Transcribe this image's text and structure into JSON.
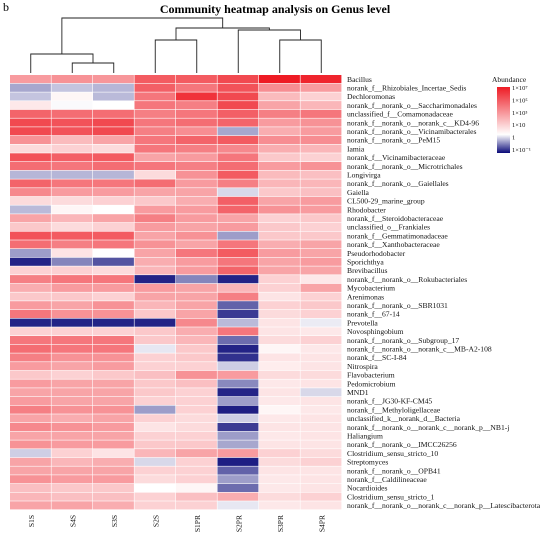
{
  "panel_letter": "b",
  "chart_data": {
    "type": "heatmap",
    "title": "Community heatmap analysis on Genus level",
    "columns": [
      "S1S",
      "S4S",
      "S3S",
      "S2S",
      "S1PR",
      "S2PR",
      "S3PR",
      "S4PR"
    ],
    "rows": [
      "Bacillus",
      "norank_f__Rhizobiales_Incertae_Sedis",
      "Dechloromonas",
      "norank_f__norank_o__Saccharimonadales",
      "unclassified_f__Comamonadaceae",
      "norank_f__norank_o__norank_c__KD4-96",
      "norank_f__norank_o__Vicinamibacterales",
      "norank_f__norank_o__PeM15",
      "Iamia",
      "norank_f__Vicinamibacteraceae",
      "norank_f__norank_o__Microtrichales",
      "Longivirga",
      "norank_f__norank_o__Gaiellales",
      "Gaiella",
      "CL500-29_marine_group",
      "Rhodobacter",
      "norank_f__Steroidobacteraceae",
      "unclassified_o__Frankiales",
      "norank_f__Gemmatimonadaceae",
      "norank_f__Xanthobacteraceae",
      "Pseudorhodobacter",
      "Sporichthya",
      "Brevibacillus",
      "norank_f__norank_o__Rokubacteriales",
      "Mycobacterium",
      "Arenimonas",
      "norank_f__norank_o__SBR1031",
      "norank_f__67-14",
      "Prevotella",
      "Novosphingobium",
      "norank_f__norank_o__Subgroup_17",
      "norank_f__norank_o__norank_c__MB-A2-108",
      "norank_f__SC-I-84",
      "Nitrospira",
      "Flavobacterium",
      "Pedomicrobium",
      "MND1",
      "norank_f__JG30-KF-CM45",
      "norank_f__Methyloligellaceae",
      "unclassified_k__norank_d__Bacteria",
      "norank_f__norank_o__norank_c__norank_p__NB1-j",
      "Haliangium",
      "norank_f__norank_o__IMCC26256",
      "Clostridium_sensu_stricto_10",
      "Streptomyces",
      "norank_f__norank_o__OPB41",
      "norank_f__Caldilineaceae",
      "Nocardioides",
      "Clostridium_sensu_stricto_1",
      "norank_f__norank_o__norank_c__norank_p__Latescibacterota"
    ],
    "values": [
      [
        0.72,
        0.74,
        0.73,
        0.86,
        0.86,
        0.9,
        1.0,
        0.98
      ],
      [
        0.32,
        0.38,
        0.35,
        0.85,
        0.8,
        0.88,
        0.75,
        0.72
      ],
      [
        0.38,
        0.52,
        0.36,
        0.8,
        0.95,
        0.9,
        0.65,
        0.6
      ],
      [
        0.55,
        0.49,
        0.5,
        0.8,
        0.78,
        0.9,
        0.7,
        0.66
      ],
      [
        0.84,
        0.82,
        0.82,
        0.78,
        0.8,
        0.85,
        0.78,
        0.8
      ],
      [
        0.9,
        0.88,
        0.9,
        0.8,
        0.82,
        0.84,
        0.72,
        0.74
      ],
      [
        0.9,
        0.88,
        0.9,
        0.78,
        0.75,
        0.32,
        0.68,
        0.72
      ],
      [
        0.74,
        0.65,
        0.7,
        0.8,
        0.84,
        0.86,
        0.75,
        0.75
      ],
      [
        0.58,
        0.6,
        0.58,
        0.8,
        0.78,
        0.76,
        0.68,
        0.66
      ],
      [
        0.88,
        0.85,
        0.86,
        0.7,
        0.72,
        0.8,
        0.62,
        0.6
      ],
      [
        0.82,
        0.8,
        0.82,
        0.8,
        0.78,
        0.82,
        0.72,
        0.74
      ],
      [
        0.35,
        0.35,
        0.35,
        0.58,
        0.74,
        0.86,
        0.65,
        0.64
      ],
      [
        0.84,
        0.8,
        0.8,
        0.82,
        0.72,
        0.78,
        0.66,
        0.66
      ],
      [
        0.76,
        0.72,
        0.72,
        0.7,
        0.7,
        0.42,
        0.62,
        0.64
      ],
      [
        0.58,
        0.58,
        0.6,
        0.62,
        0.68,
        0.85,
        0.7,
        0.72
      ],
      [
        0.36,
        0.52,
        0.5,
        0.72,
        0.72,
        0.84,
        0.74,
        0.72
      ],
      [
        0.7,
        0.66,
        0.7,
        0.78,
        0.72,
        0.7,
        0.6,
        0.62
      ],
      [
        0.62,
        0.58,
        0.6,
        0.72,
        0.7,
        0.72,
        0.62,
        0.6
      ],
      [
        0.88,
        0.86,
        0.86,
        0.7,
        0.74,
        0.3,
        0.62,
        0.62
      ],
      [
        0.82,
        0.78,
        0.8,
        0.74,
        0.7,
        0.8,
        0.68,
        0.7
      ],
      [
        0.3,
        0.56,
        0.5,
        0.7,
        0.8,
        0.86,
        0.72,
        0.7
      ],
      [
        0.05,
        0.25,
        0.15,
        0.68,
        0.72,
        0.8,
        0.7,
        0.72
      ],
      [
        0.6,
        0.6,
        0.58,
        0.66,
        0.72,
        0.84,
        0.7,
        0.7
      ],
      [
        0.78,
        0.8,
        0.8,
        0.05,
        0.25,
        0.05,
        0.6,
        0.55
      ],
      [
        0.68,
        0.72,
        0.72,
        0.72,
        0.7,
        0.66,
        0.6,
        0.7
      ],
      [
        0.62,
        0.62,
        0.6,
        0.7,
        0.7,
        0.78,
        0.56,
        0.6
      ],
      [
        0.72,
        0.7,
        0.74,
        0.66,
        0.7,
        0.18,
        0.6,
        0.62
      ],
      [
        0.8,
        0.74,
        0.74,
        0.62,
        0.7,
        0.1,
        0.58,
        0.6
      ],
      [
        0.05,
        0.05,
        0.05,
        0.05,
        0.76,
        0.36,
        0.56,
        0.46
      ],
      [
        0.6,
        0.6,
        0.6,
        0.62,
        0.68,
        0.8,
        0.56,
        0.55
      ],
      [
        0.8,
        0.8,
        0.8,
        0.62,
        0.66,
        0.2,
        0.58,
        0.6
      ],
      [
        0.82,
        0.8,
        0.8,
        0.45,
        0.62,
        0.05,
        0.52,
        0.55
      ],
      [
        0.78,
        0.74,
        0.74,
        0.6,
        0.62,
        0.08,
        0.56,
        0.56
      ],
      [
        0.72,
        0.7,
        0.72,
        0.6,
        0.6,
        0.4,
        0.54,
        0.56
      ],
      [
        0.62,
        0.6,
        0.62,
        0.64,
        0.74,
        0.72,
        0.58,
        0.58
      ],
      [
        0.72,
        0.7,
        0.7,
        0.62,
        0.64,
        0.26,
        0.55,
        0.56
      ],
      [
        0.7,
        0.7,
        0.7,
        0.62,
        0.6,
        0.05,
        0.56,
        0.42
      ],
      [
        0.72,
        0.7,
        0.7,
        0.6,
        0.6,
        0.3,
        0.55,
        0.56
      ],
      [
        0.78,
        0.74,
        0.74,
        0.3,
        0.6,
        0.04,
        0.52,
        0.55
      ],
      [
        0.7,
        0.68,
        0.7,
        0.6,
        0.58,
        0.4,
        0.55,
        0.56
      ],
      [
        0.76,
        0.74,
        0.72,
        0.56,
        0.58,
        0.1,
        0.56,
        0.56
      ],
      [
        0.7,
        0.7,
        0.7,
        0.6,
        0.6,
        0.3,
        0.55,
        0.56
      ],
      [
        0.74,
        0.72,
        0.72,
        0.62,
        0.62,
        0.32,
        0.56,
        0.56
      ],
      [
        0.4,
        0.6,
        0.56,
        0.66,
        0.7,
        0.72,
        0.6,
        0.58
      ],
      [
        0.7,
        0.66,
        0.68,
        0.42,
        0.6,
        0.04,
        0.58,
        0.6
      ],
      [
        0.7,
        0.7,
        0.7,
        0.6,
        0.6,
        0.18,
        0.56,
        0.56
      ],
      [
        0.74,
        0.72,
        0.72,
        0.58,
        0.6,
        0.3,
        0.55,
        0.56
      ],
      [
        0.64,
        0.62,
        0.62,
        0.5,
        0.52,
        0.2,
        0.55,
        0.56
      ],
      [
        0.66,
        0.64,
        0.64,
        0.6,
        0.64,
        0.68,
        0.58,
        0.6
      ],
      [
        0.7,
        0.7,
        0.68,
        0.6,
        0.6,
        0.45,
        0.55,
        0.56
      ]
    ],
    "legend": {
      "title": "Abundance",
      "labels": [
        "1×10⁷",
        "1×10⁵",
        "1×10³",
        "1×10",
        "1",
        "1×10⁻¹"
      ],
      "colors": [
        "#ee1b24",
        "#ffffff",
        "#0a0a78"
      ]
    },
    "colors": {
      "low": "#0a0a78",
      "mid": "#ffffff",
      "high": "#ee1b24"
    }
  }
}
